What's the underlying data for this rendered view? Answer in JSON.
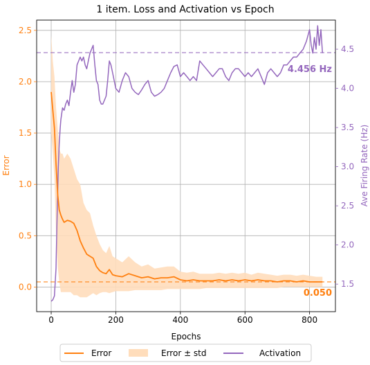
{
  "chart_data": {
    "type": "line",
    "title": "1 item. Loss and Activation vs Epoch",
    "xlabel": "Epochs",
    "ylabel_left": "Error",
    "ylabel_right": "Ave Firing Rate (Hz)",
    "xlim": [
      -45,
      880
    ],
    "ylim_left": [
      -0.24,
      2.6
    ],
    "ylim_right": [
      1.148,
      4.872
    ],
    "xticks": [
      0,
      200,
      400,
      600,
      800
    ],
    "yticks_left": [
      0.0,
      0.5,
      1.0,
      1.5,
      2.0,
      2.5
    ],
    "ytick_labels_left": [
      "0.0",
      "0.5",
      "1.0",
      "1.5",
      "2.0",
      "2.5"
    ],
    "yticks_right": [
      1.5,
      2.0,
      2.5,
      3.0,
      3.5,
      4.0,
      4.5
    ],
    "ytick_labels_right": [
      "1.5",
      "2.0",
      "2.5",
      "3.0",
      "3.5",
      "4.0",
      "4.5"
    ],
    "grid": true,
    "legend_position": "bottom-center",
    "error_color": "#ff7f0e",
    "band_color": "#ffddbb",
    "activation_color": "#9467bd",
    "series": [
      {
        "name": "Error",
        "axis": "left",
        "x": [
          0,
          5,
          10,
          15,
          20,
          25,
          30,
          35,
          40,
          50,
          60,
          70,
          80,
          90,
          100,
          110,
          120,
          130,
          140,
          150,
          160,
          170,
          180,
          190,
          200,
          220,
          240,
          260,
          280,
          300,
          320,
          340,
          360,
          380,
          400,
          420,
          440,
          460,
          480,
          500,
          520,
          540,
          560,
          580,
          600,
          620,
          640,
          660,
          680,
          700,
          720,
          740,
          760,
          780,
          800,
          820,
          840
        ],
        "values": [
          1.9,
          1.72,
          1.55,
          1.2,
          0.9,
          0.75,
          0.7,
          0.66,
          0.63,
          0.65,
          0.64,
          0.62,
          0.55,
          0.45,
          0.38,
          0.32,
          0.3,
          0.28,
          0.2,
          0.16,
          0.14,
          0.13,
          0.17,
          0.12,
          0.11,
          0.1,
          0.13,
          0.11,
          0.09,
          0.1,
          0.08,
          0.09,
          0.09,
          0.1,
          0.07,
          0.06,
          0.07,
          0.06,
          0.06,
          0.06,
          0.07,
          0.06,
          0.07,
          0.06,
          0.07,
          0.06,
          0.07,
          0.06,
          0.06,
          0.05,
          0.06,
          0.06,
          0.05,
          0.06,
          0.05,
          0.05,
          0.05
        ]
      },
      {
        "name": "Error ± std",
        "axis": "left",
        "x": [
          0,
          5,
          10,
          15,
          20,
          25,
          30,
          35,
          40,
          50,
          60,
          70,
          80,
          90,
          100,
          110,
          120,
          130,
          140,
          150,
          160,
          170,
          180,
          190,
          200,
          220,
          240,
          260,
          280,
          300,
          320,
          340,
          360,
          380,
          400,
          420,
          440,
          460,
          480,
          500,
          520,
          540,
          560,
          580,
          600,
          620,
          640,
          660,
          680,
          700,
          720,
          740,
          760,
          780,
          800,
          820,
          840
        ],
        "lower": [
          1.5,
          1.3,
          1.05,
          0.55,
          0.2,
          0.05,
          -0.05,
          -0.05,
          -0.05,
          -0.05,
          -0.05,
          -0.08,
          -0.08,
          -0.1,
          -0.1,
          -0.1,
          -0.08,
          -0.06,
          -0.08,
          -0.06,
          -0.05,
          -0.05,
          -0.06,
          -0.05,
          -0.04,
          -0.04,
          -0.04,
          -0.03,
          -0.03,
          -0.03,
          -0.03,
          -0.03,
          -0.02,
          -0.02,
          -0.02,
          -0.02,
          -0.02,
          -0.02,
          -0.01,
          -0.01,
          -0.01,
          -0.01,
          -0.01,
          -0.01,
          -0.01,
          -0.01,
          -0.01,
          -0.01,
          -0.01,
          -0.01,
          0.0,
          0.0,
          0.0,
          0.0,
          0.0,
          0.0,
          0.0
        ],
        "upper": [
          2.45,
          2.2,
          2.05,
          1.75,
          1.55,
          1.35,
          1.3,
          1.3,
          1.25,
          1.3,
          1.25,
          1.15,
          1.05,
          1.0,
          0.82,
          0.75,
          0.72,
          0.6,
          0.5,
          0.42,
          0.36,
          0.33,
          0.4,
          0.3,
          0.28,
          0.24,
          0.3,
          0.24,
          0.2,
          0.22,
          0.18,
          0.19,
          0.2,
          0.2,
          0.15,
          0.14,
          0.15,
          0.13,
          0.13,
          0.13,
          0.14,
          0.13,
          0.14,
          0.13,
          0.14,
          0.12,
          0.14,
          0.13,
          0.12,
          0.11,
          0.12,
          0.12,
          0.11,
          0.12,
          0.11,
          0.1,
          0.1
        ]
      },
      {
        "name": "Activation",
        "axis": "right",
        "x": [
          0,
          5,
          10,
          15,
          18,
          22,
          25,
          28,
          30,
          35,
          40,
          45,
          50,
          55,
          60,
          65,
          70,
          75,
          80,
          85,
          90,
          95,
          100,
          105,
          110,
          115,
          120,
          125,
          130,
          135,
          140,
          145,
          150,
          155,
          160,
          165,
          170,
          175,
          180,
          185,
          190,
          195,
          200,
          210,
          220,
          230,
          240,
          250,
          260,
          270,
          280,
          290,
          300,
          310,
          320,
          330,
          340,
          350,
          360,
          370,
          380,
          390,
          400,
          410,
          420,
          430,
          440,
          450,
          460,
          470,
          480,
          490,
          500,
          510,
          520,
          530,
          540,
          550,
          560,
          570,
          580,
          590,
          600,
          610,
          620,
          630,
          640,
          650,
          660,
          670,
          680,
          690,
          700,
          710,
          720,
          730,
          740,
          750,
          760,
          770,
          780,
          790,
          800,
          805,
          810,
          815,
          820,
          825,
          830,
          835,
          840
        ],
        "values": [
          1.28,
          1.3,
          1.35,
          1.7,
          2.3,
          3.0,
          3.3,
          3.5,
          3.6,
          3.75,
          3.72,
          3.8,
          3.85,
          3.78,
          3.95,
          4.1,
          3.95,
          4.05,
          4.3,
          4.35,
          4.4,
          4.35,
          4.4,
          4.3,
          4.25,
          4.35,
          4.45,
          4.5,
          4.55,
          4.3,
          4.1,
          4.05,
          3.85,
          3.8,
          3.8,
          3.85,
          3.9,
          4.1,
          4.35,
          4.3,
          4.2,
          4.1,
          4.0,
          3.95,
          4.1,
          4.2,
          4.15,
          4.0,
          3.95,
          3.92,
          3.98,
          4.05,
          4.1,
          3.95,
          3.9,
          3.92,
          3.95,
          4.0,
          4.1,
          4.2,
          4.28,
          4.3,
          4.15,
          4.2,
          4.15,
          4.1,
          4.15,
          4.1,
          4.35,
          4.3,
          4.25,
          4.2,
          4.15,
          4.2,
          4.25,
          4.25,
          4.15,
          4.1,
          4.2,
          4.25,
          4.25,
          4.2,
          4.15,
          4.2,
          4.15,
          4.2,
          4.25,
          4.15,
          4.05,
          4.2,
          4.25,
          4.2,
          4.15,
          4.2,
          4.3,
          4.3,
          4.35,
          4.4,
          4.4,
          4.45,
          4.5,
          4.6,
          4.75,
          4.55,
          4.45,
          4.65,
          4.5,
          4.8,
          4.55,
          4.75,
          4.45
        ]
      }
    ],
    "reference_lines": [
      {
        "axis": "left",
        "value": 0.05,
        "label": "0.050"
      },
      {
        "axis": "right",
        "value": 4.456,
        "label": "4.456 Hz"
      }
    ]
  }
}
